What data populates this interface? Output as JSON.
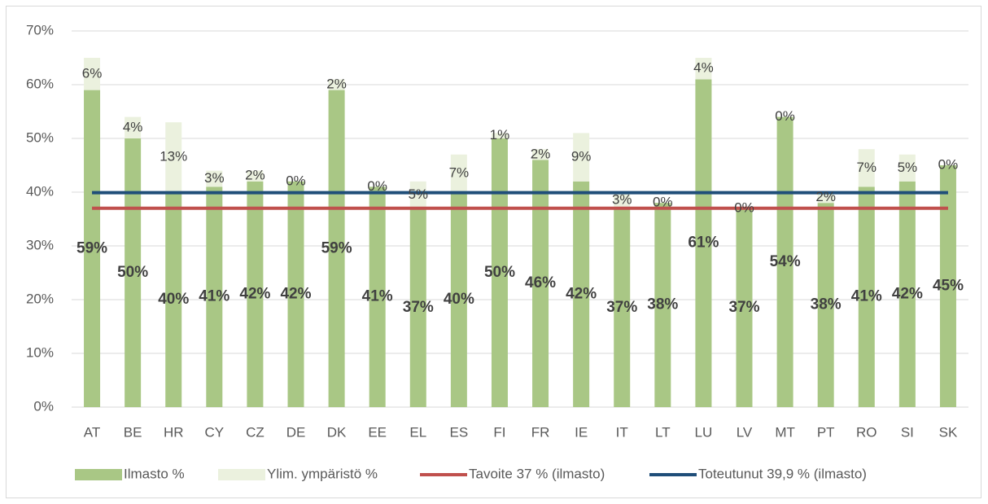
{
  "chart_data": {
    "type": "bar",
    "stacked": true,
    "categories": [
      "AT",
      "BE",
      "HR",
      "CY",
      "CZ",
      "DE",
      "DK",
      "EE",
      "EL",
      "ES",
      "FI",
      "FR",
      "IE",
      "IT",
      "LT",
      "LU",
      "LV",
      "MT",
      "PT",
      "RO",
      "SI",
      "SK"
    ],
    "series": [
      {
        "name": "Ilmasto %",
        "type": "bar",
        "color": "#a9c785",
        "values": [
          59,
          50,
          40,
          41,
          42,
          42,
          59,
          41,
          37,
          40,
          50,
          46,
          42,
          37,
          38,
          61,
          37,
          54,
          38,
          41,
          42,
          45
        ],
        "value_labels": [
          "59%",
          "50%",
          "40%",
          "41%",
          "42%",
          "42%",
          "59%",
          "41%",
          "37%",
          "40%",
          "50%",
          "46%",
          "42%",
          "37%",
          "38%",
          "61%",
          "37%",
          "54%",
          "38%",
          "41%",
          "42%",
          "45%"
        ]
      },
      {
        "name": "Ylim. ympäristö %",
        "type": "bar",
        "color": "#ebf1de",
        "values": [
          6,
          4,
          13,
          3,
          2,
          0,
          2,
          0,
          5,
          7,
          1,
          2,
          9,
          3,
          0,
          4,
          0,
          0,
          2,
          7,
          5,
          0
        ],
        "value_labels": [
          "6%",
          "4%",
          "13%",
          "3%",
          "2%",
          "0%",
          "2%",
          "0%",
          "5%",
          "7%",
          "1%",
          "2%",
          "9%",
          "3%",
          "0%",
          "4%",
          "0%",
          "0%",
          "2%",
          "7%",
          "5%",
          "0%"
        ]
      },
      {
        "name": "Tavoite 37 % (ilmasto)",
        "type": "line",
        "color": "#c0504d",
        "values": [
          37,
          37,
          37,
          37,
          37,
          37,
          37,
          37,
          37,
          37,
          37,
          37,
          37,
          37,
          37,
          37,
          37,
          37,
          37,
          37,
          37,
          37
        ]
      },
      {
        "name": "Toteutunut 39,9 % (ilmasto)",
        "type": "line",
        "color": "#1f4e79",
        "values": [
          39.9,
          39.9,
          39.9,
          39.9,
          39.9,
          39.9,
          39.9,
          39.9,
          39.9,
          39.9,
          39.9,
          39.9,
          39.9,
          39.9,
          39.9,
          39.9,
          39.9,
          39.9,
          39.9,
          39.9,
          39.9,
          39.9
        ]
      }
    ],
    "ylim": [
      0,
      70
    ],
    "yticks": [
      {
        "value": 0,
        "label": "0%"
      },
      {
        "value": 10,
        "label": "10%"
      },
      {
        "value": 20,
        "label": "20%"
      },
      {
        "value": 30,
        "label": "30%"
      },
      {
        "value": 40,
        "label": "40%"
      },
      {
        "value": 50,
        "label": "50%"
      },
      {
        "value": 60,
        "label": "60%"
      },
      {
        "value": 70,
        "label": "70%"
      }
    ],
    "grid": true,
    "legend": "bottom"
  }
}
